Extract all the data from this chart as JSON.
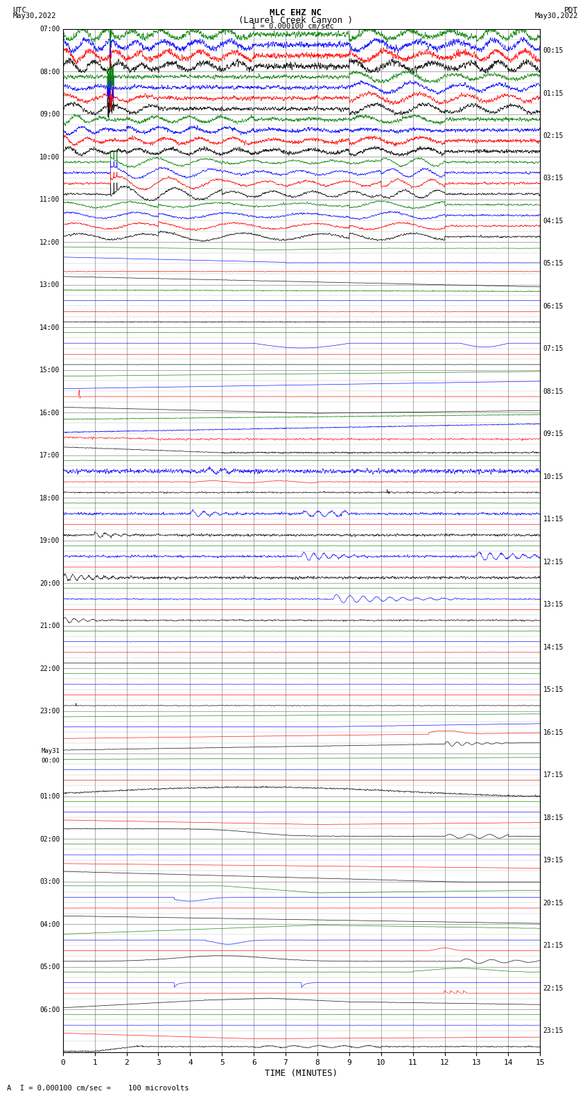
{
  "title_line1": "MLC EHZ NC",
  "title_line2": "(Laurel Creek Canyon )",
  "scale_label": "I = 0.000100 cm/sec",
  "bottom_label": "A  I = 0.000100 cm/sec =    100 microvolts",
  "utc_label": "UTC\nMay30,2022",
  "pdt_label": "PDT\nMay30,2022",
  "xlabel": "TIME (MINUTES)",
  "left_times": [
    "07:00",
    "08:00",
    "09:00",
    "10:00",
    "11:00",
    "12:00",
    "13:00",
    "14:00",
    "15:00",
    "16:00",
    "17:00",
    "18:00",
    "19:00",
    "20:00",
    "21:00",
    "22:00",
    "23:00",
    "May31\n00:00",
    "01:00",
    "02:00",
    "03:00",
    "04:00",
    "05:00",
    "06:00"
  ],
  "right_times": [
    "00:15",
    "01:15",
    "02:15",
    "03:15",
    "04:15",
    "05:15",
    "06:15",
    "07:15",
    "08:15",
    "09:15",
    "10:15",
    "11:15",
    "12:15",
    "13:15",
    "14:15",
    "15:15",
    "16:15",
    "17:15",
    "18:15",
    "19:15",
    "20:15",
    "21:15",
    "22:15",
    "23:15"
  ],
  "n_rows": 24,
  "x_ticks": [
    0,
    1,
    2,
    3,
    4,
    5,
    6,
    7,
    8,
    9,
    10,
    11,
    12,
    13,
    14,
    15
  ],
  "bg_color": "#ffffff",
  "colors": [
    "black",
    "red",
    "blue",
    "green"
  ]
}
